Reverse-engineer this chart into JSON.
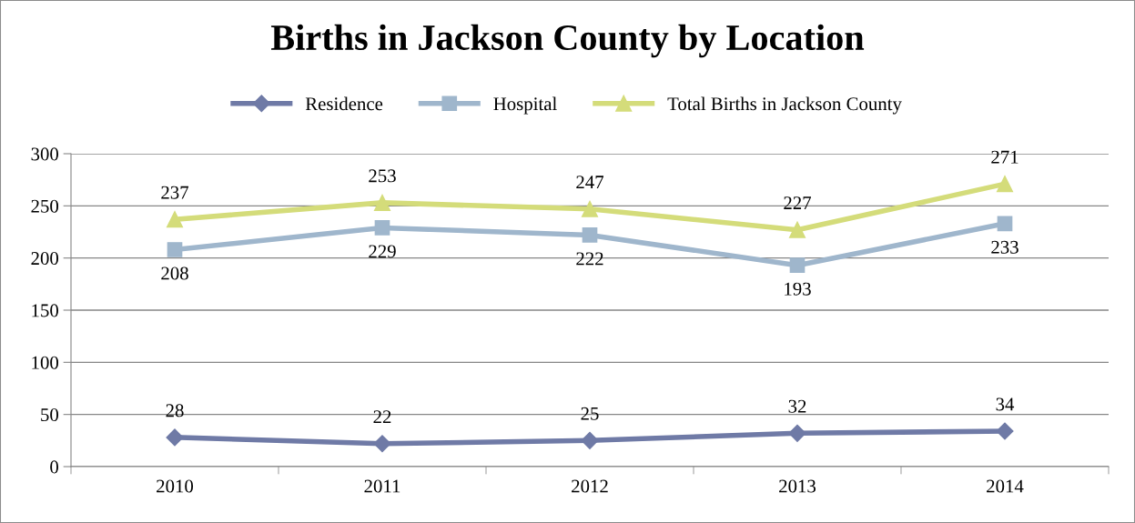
{
  "chart_data": {
    "type": "line",
    "title": "Births in Jackson County by Location",
    "categories": [
      "2010",
      "2011",
      "2012",
      "2013",
      "2014"
    ],
    "series": [
      {
        "name": "Residence",
        "color": "#6f7aa6",
        "marker": "diamond",
        "values": [
          28,
          22,
          25,
          32,
          34
        ]
      },
      {
        "name": "Hospital",
        "color": "#9fb6cc",
        "marker": "square",
        "values": [
          208,
          229,
          222,
          193,
          233
        ]
      },
      {
        "name": "Total Births in Jackson County",
        "color": "#d4dc7a",
        "marker": "triangle",
        "values": [
          237,
          253,
          247,
          227,
          271
        ]
      }
    ],
    "ylim": [
      0,
      300
    ],
    "yticks": [
      0,
      50,
      100,
      150,
      200,
      250,
      300
    ],
    "grid": "y",
    "legend": "top",
    "data_labels": true,
    "line_style": "solid"
  }
}
